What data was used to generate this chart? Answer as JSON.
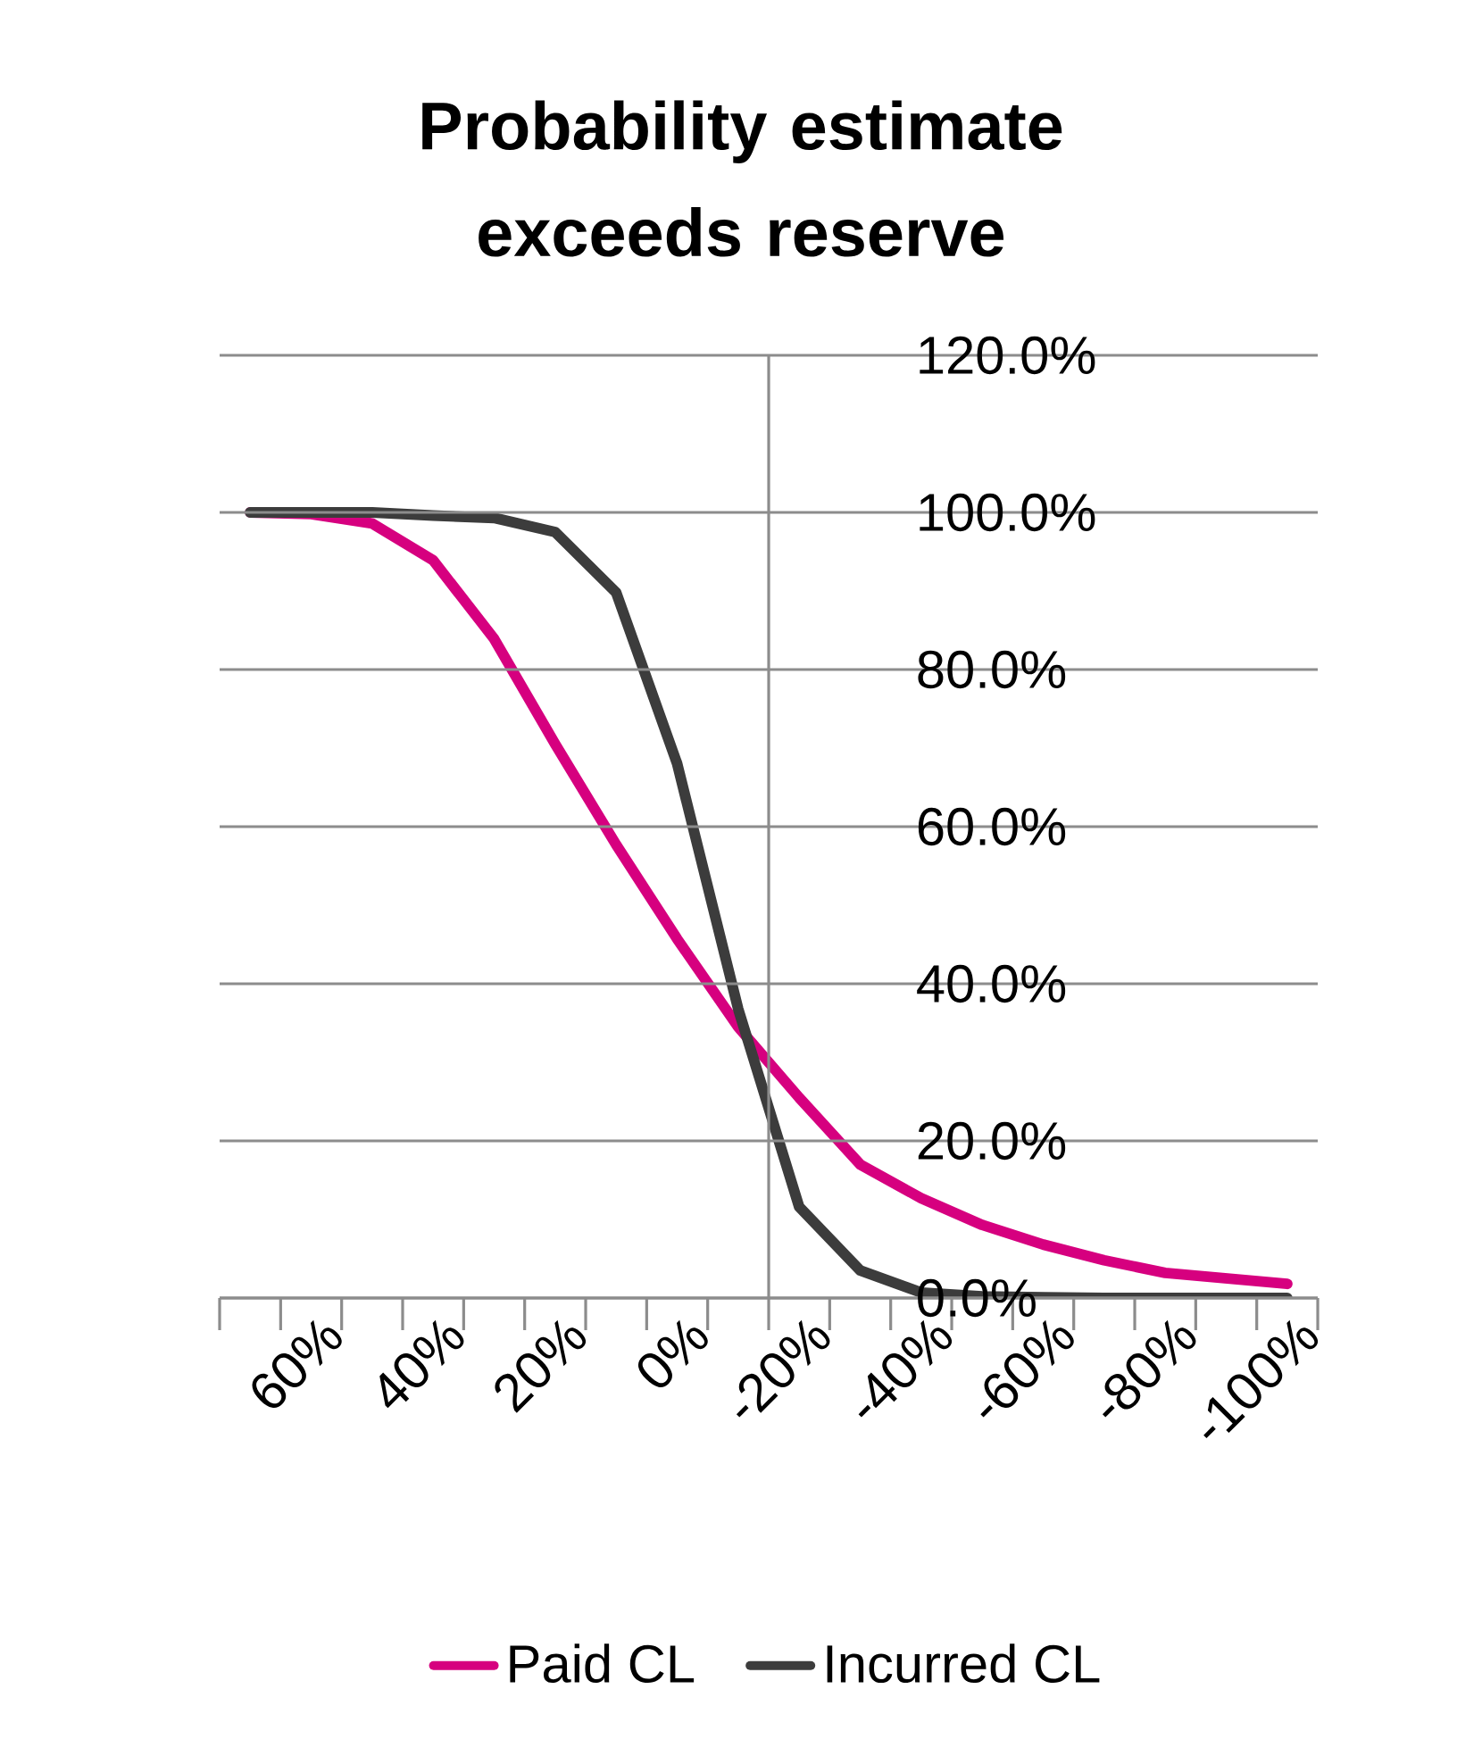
{
  "chart_data": {
    "type": "line",
    "title": "Probability estimate exceeds reserve",
    "categories": [
      null,
      "60%",
      null,
      "40%",
      null,
      "20%",
      null,
      "0%",
      null,
      "-20%",
      null,
      "-40%",
      null,
      "-60%",
      null,
      "-80%",
      null,
      "-100%"
    ],
    "series": [
      {
        "name": "Paid CL",
        "color": "#d6007f",
        "values": [
          100,
          99.8,
          98.6,
          93.9,
          83.9,
          70.5,
          57.7,
          45.7,
          34.5,
          25.5,
          17,
          12.7,
          9.3,
          6.8,
          4.8,
          3.2,
          2.5,
          1.8
        ]
      },
      {
        "name": "Incurred CL",
        "color": "#3c3c3c",
        "values": [
          100,
          100,
          100,
          99.6,
          99.3,
          97.5,
          89.8,
          68,
          36.8,
          11.6,
          3.5,
          0.7,
          0.2,
          0.1,
          0,
          0,
          0,
          0
        ]
      }
    ],
    "ylim": [
      0,
      120
    ],
    "yticks": [
      {
        "value": 0,
        "label": "0.0%"
      },
      {
        "value": 20,
        "label": "20.0%"
      },
      {
        "value": 40,
        "label": "40.0%"
      },
      {
        "value": 60,
        "label": "60.0%"
      },
      {
        "value": 80,
        "label": "80.0%"
      },
      {
        "value": 100,
        "label": "100.0%"
      },
      {
        "value": 120,
        "label": "120.0%"
      }
    ],
    "grid": "y",
    "legend": "bottom",
    "marker": "none"
  }
}
